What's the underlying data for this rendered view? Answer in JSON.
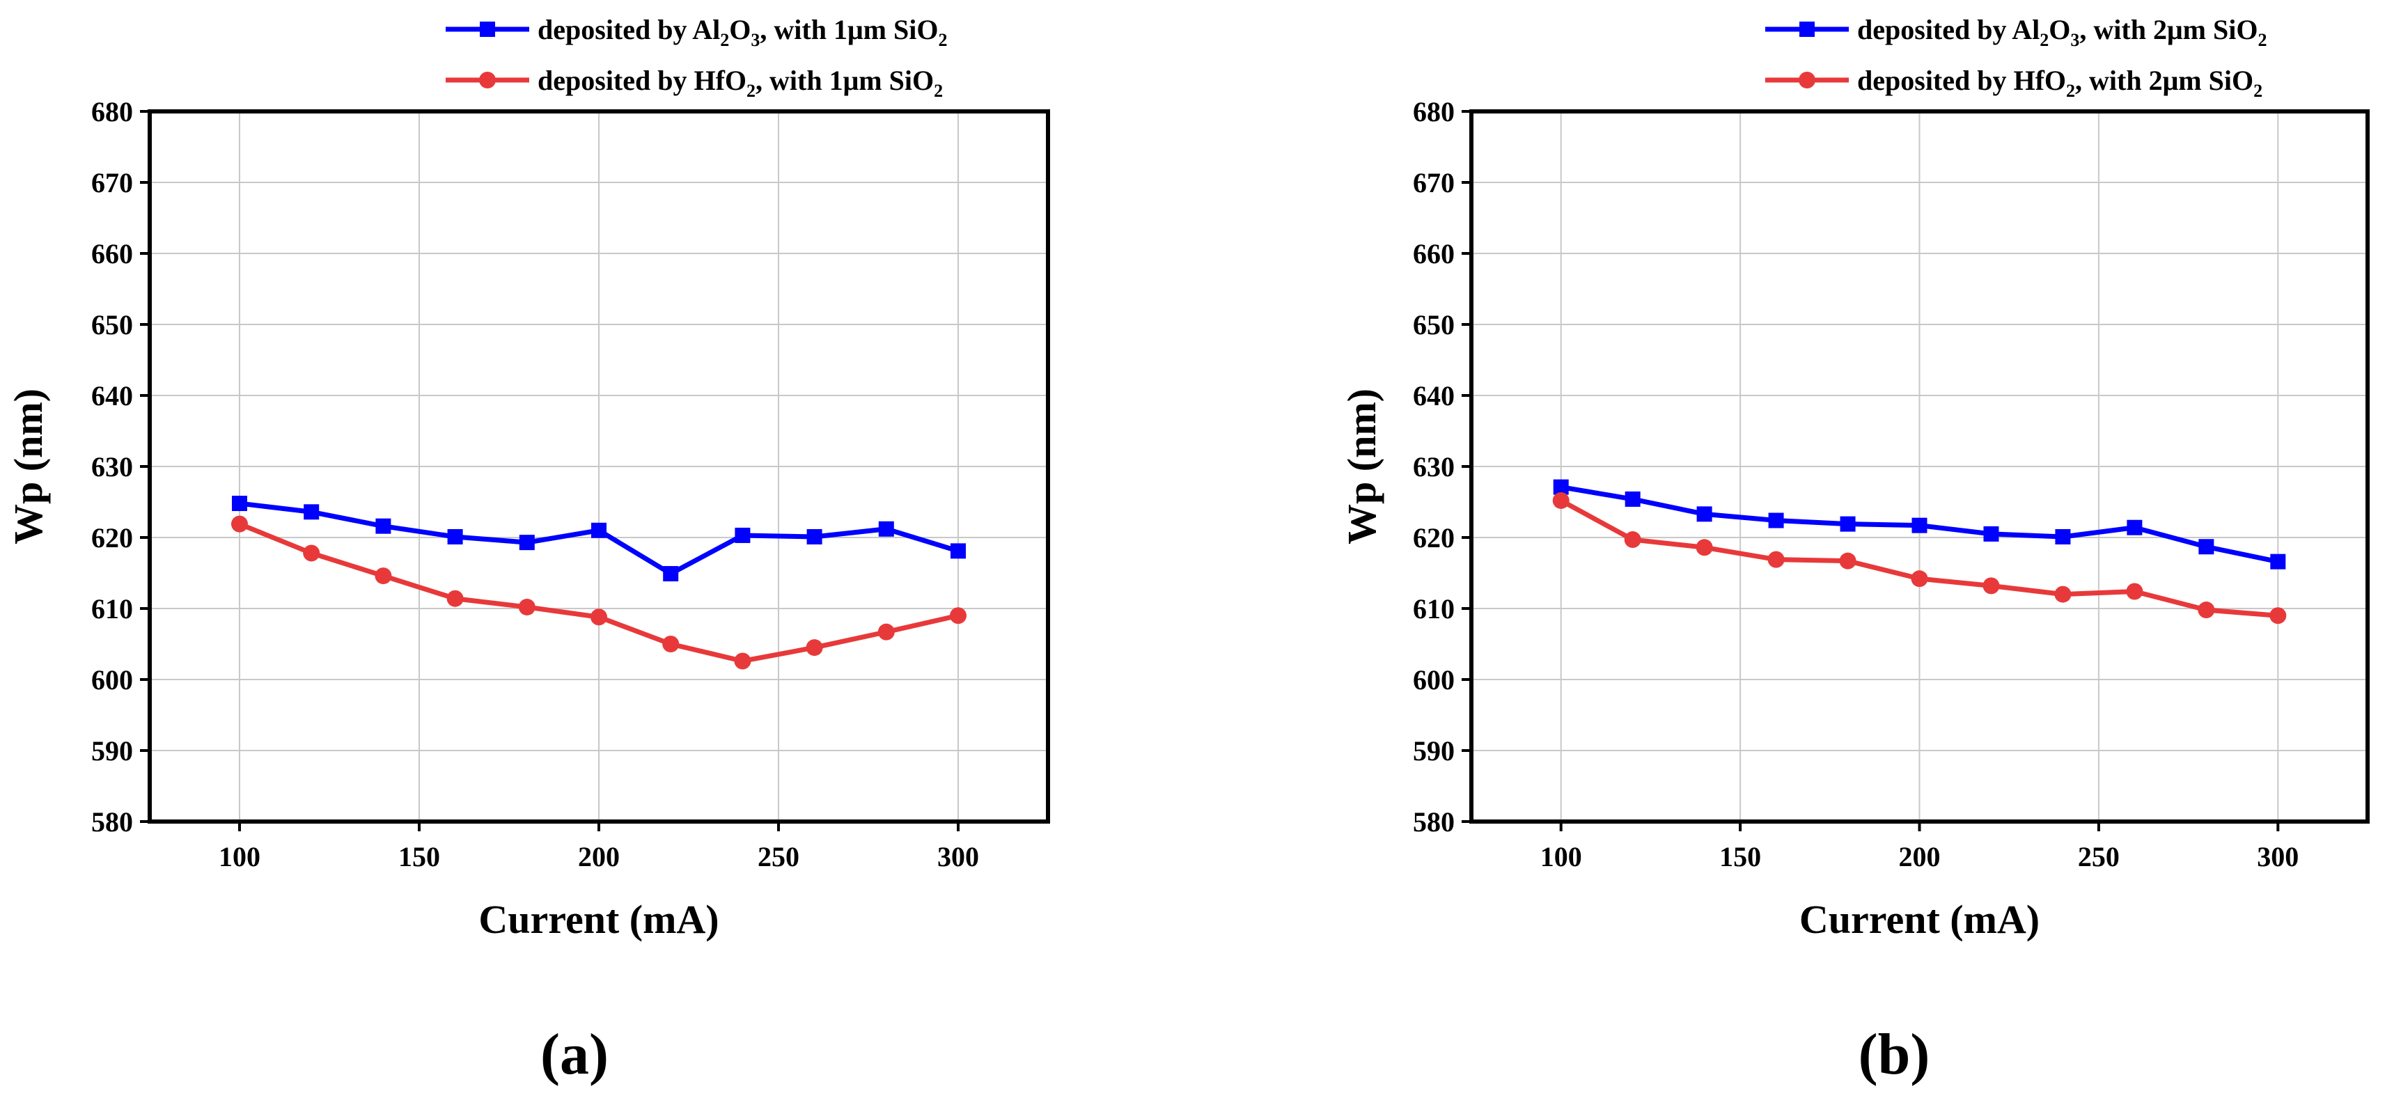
{
  "chart_data": [
    {
      "type": "line",
      "panel_label": "(a)",
      "xlabel": "Current (mA)",
      "ylabel": "Wp (nm)",
      "xlim": [
        75,
        325
      ],
      "ylim": [
        580,
        680
      ],
      "xticks": [
        100,
        150,
        200,
        250,
        300
      ],
      "yticks": [
        580,
        590,
        600,
        610,
        620,
        630,
        640,
        650,
        660,
        670,
        680
      ],
      "grid": true,
      "legend_position": "top-right",
      "x": [
        100,
        120,
        140,
        160,
        180,
        200,
        220,
        240,
        260,
        280,
        300
      ],
      "series": [
        {
          "name": "deposited by Al2O3, with 1μm SiO2",
          "legend_parts": [
            "deposited by Al",
            "2",
            "O",
            "3",
            ", with 1μm SiO",
            "2"
          ],
          "color": "#0000ff",
          "marker": "square",
          "values": [
            624.8,
            623.6,
            621.6,
            620.1,
            619.3,
            621.0,
            614.9,
            620.3,
            620.1,
            621.2,
            618.1
          ]
        },
        {
          "name": "deposited by HfO2, with 1μm SiO2",
          "legend_parts": [
            "deposited by HfO",
            "2",
            ", with 1μm SiO",
            "2"
          ],
          "color": "#e8393a",
          "marker": "circle",
          "values": [
            621.9,
            617.8,
            614.6,
            611.4,
            610.2,
            608.8,
            605.0,
            602.6,
            604.5,
            606.7,
            609.0
          ]
        }
      ]
    },
    {
      "type": "line",
      "panel_label": "(b)",
      "xlabel": "Current (mA)",
      "ylabel": "Wp (nm)",
      "xlim": [
        75,
        325
      ],
      "ylim": [
        580,
        680
      ],
      "xticks": [
        100,
        150,
        200,
        250,
        300
      ],
      "yticks": [
        580,
        590,
        600,
        610,
        620,
        630,
        640,
        650,
        660,
        670,
        680
      ],
      "grid": true,
      "legend_position": "top-right",
      "x": [
        100,
        120,
        140,
        160,
        180,
        200,
        220,
        240,
        260,
        280,
        300
      ],
      "series": [
        {
          "name": "deposited by Al2O3, with 2μm SiO2",
          "legend_parts": [
            "deposited by Al",
            "2",
            "O",
            "3",
            ", with 2μm SiO",
            "2"
          ],
          "color": "#0000ff",
          "marker": "square",
          "values": [
            627.1,
            625.4,
            623.3,
            622.4,
            621.9,
            621.7,
            620.5,
            620.1,
            621.4,
            618.7,
            616.6
          ]
        },
        {
          "name": "deposited by HfO2, with 2μm SiO2",
          "legend_parts": [
            "deposited by HfO",
            "2",
            ", with 2μm SiO",
            "2"
          ],
          "color": "#e8393a",
          "marker": "circle",
          "values": [
            625.2,
            619.7,
            618.6,
            616.9,
            616.7,
            614.2,
            613.2,
            612.0,
            612.4,
            609.8,
            609.0
          ]
        }
      ]
    }
  ]
}
